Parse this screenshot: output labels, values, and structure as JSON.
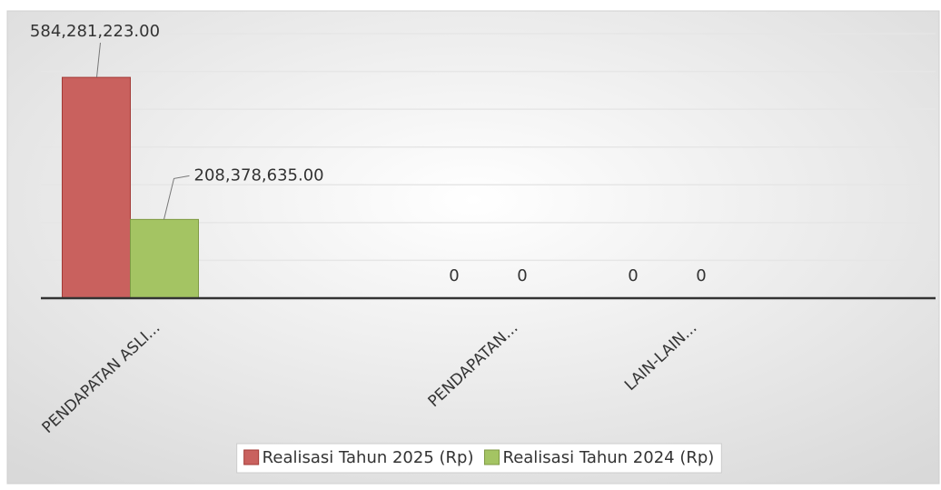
{
  "chart_data": {
    "type": "bar",
    "categories": [
      "PENDAPATAN ASLI...",
      null,
      "PENDAPATAN...",
      "LAIN-LAIN...",
      null
    ],
    "series": [
      {
        "name": "Realisasi Tahun 2025 (Rp)",
        "color": "#c9615e",
        "values": [
          584281223,
          null,
          0,
          0,
          null
        ],
        "value_labels": [
          "584,281,223.00",
          null,
          "0",
          "0",
          null
        ]
      },
      {
        "name": "Realisasi Tahun 2024 (Rp)",
        "color": "#a4c463",
        "values": [
          208378635,
          null,
          0,
          0,
          null
        ],
        "value_labels": [
          "208,378,635.00",
          null,
          "0",
          "0",
          null
        ]
      }
    ],
    "ylim": [
      0,
      700000000
    ],
    "yticks": [
      0,
      100000000,
      200000000,
      300000000,
      400000000,
      500000000,
      600000000,
      700000000
    ],
    "grid": true,
    "legend": "bottom"
  }
}
